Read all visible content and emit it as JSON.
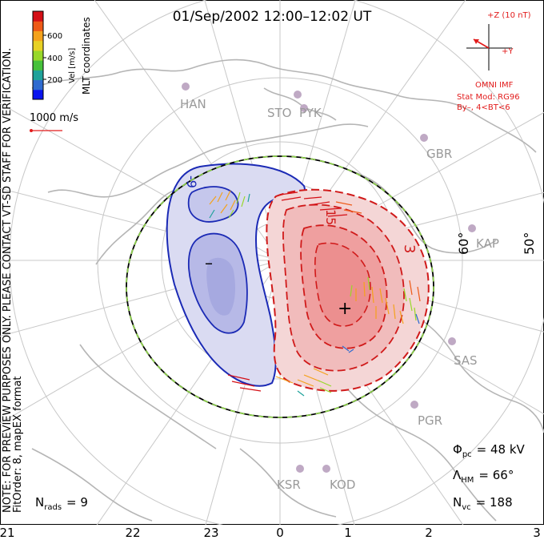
{
  "title": "01/Sep/2002 12:00–12:02 UT",
  "colorbar": {
    "title": "Vel [m/s]",
    "ticks": [
      "600",
      "400",
      "200"
    ],
    "colors": [
      "#0a14ee",
      "#2f6bd0",
      "#1fa29a",
      "#46c13b",
      "#98d82a",
      "#e7d125",
      "#f4a21c",
      "#ee5a17",
      "#d40f16"
    ]
  },
  "coordinate_label": "MLT coordinates",
  "scale_vector": {
    "label": "1000 m/s",
    "color": "#e21b1b"
  },
  "notice": {
    "line1": "NOTE: FOR PREVIEW PURPOSES ONLY. PLEASE CONTACT VT-SD STAFF FOR VERIFICATION.",
    "line2": "FitOrder: 8, mapEX format"
  },
  "imf": {
    "bz_label": "+Z (10 nT)",
    "by_label": "+Y",
    "source": "OMNI IMF",
    "model": "Stat Mod: RG96",
    "condition": "By–, 4<BT<6"
  },
  "latitude_labels": [
    "60°",
    "50°"
  ],
  "stations": [
    "HAN",
    "STO",
    "PYK",
    "GBR",
    "KAP",
    "SAS",
    "PGR",
    "KSR",
    "KOD"
  ],
  "contour_labels": {
    "negative": "-9",
    "positive_1": "15",
    "positive_2": "3"
  },
  "extrema": {
    "min": "–",
    "max": "+"
  },
  "stats": {
    "phi_label": "Φ",
    "phi_sub": "pc",
    "phi_value": "= 48 kV",
    "lambda_label": "Λ",
    "lambda_sub": "HM",
    "lambda_value": "= 66°",
    "nvc_label": "N",
    "nvc_sub": "vc",
    "nvc_value": "= 188",
    "nrads_label": "N",
    "nrads_sub": "rads",
    "nrads_value": "= 9"
  },
  "mlt_ticks": [
    "21",
    "22",
    "23",
    "0",
    "1",
    "2",
    "3"
  ]
}
